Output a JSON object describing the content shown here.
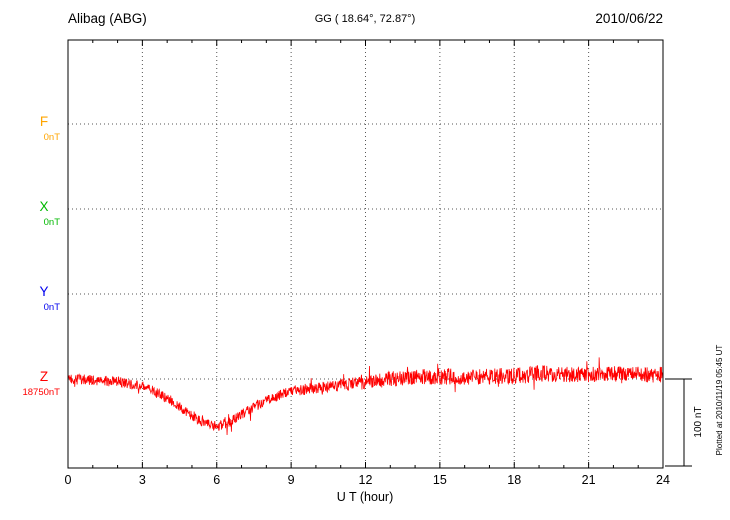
{
  "header": {
    "station": "Alibag (ABG)",
    "coords": "GG ( 18.64°,  72.87°)",
    "date": "2010/06/22"
  },
  "axes": {
    "x_label": "U T (hour)",
    "x_ticks": [
      0,
      3,
      6,
      9,
      12,
      15,
      18,
      21,
      24
    ],
    "x_min": 0,
    "x_max": 24
  },
  "channels": [
    {
      "name": "F",
      "baseline_label": "0nT",
      "color": "#FFA500"
    },
    {
      "name": "X",
      "baseline_label": "0nT",
      "color": "#00B800"
    },
    {
      "name": "Y",
      "baseline_label": "0nT",
      "color": "#0000EE"
    },
    {
      "name": "Z",
      "baseline_label": "18750nT",
      "color": "#FF0000"
    }
  ],
  "scale_bar": {
    "label": "100 nT",
    "nT": 100
  },
  "footer_note": "Plotted at 2010/11/19 05:45 UT",
  "chart_data": {
    "type": "line",
    "title": "Alibag (ABG) magnetogram",
    "xlabel": "U T (hour)",
    "x_range": [
      0,
      24
    ],
    "grid": "dotted",
    "series": [
      {
        "name": "Z",
        "color": "#FF0000",
        "baseline_nT": 18750,
        "scale_bar_nT": 100,
        "x_hours": [
          0,
          1,
          2,
          3,
          4,
          5,
          5.5,
          6,
          6.5,
          7,
          8,
          9,
          10,
          11,
          12,
          13,
          14,
          15,
          16,
          17,
          18,
          19,
          20,
          21,
          22,
          23,
          24
        ],
        "mean_dnT": [
          0,
          -1,
          -3,
          -8,
          -22,
          -42,
          -50,
          -55,
          -50,
          -40,
          -25,
          -14,
          -10,
          -7,
          -4,
          0,
          2,
          3,
          2,
          3,
          4,
          6,
          5,
          5,
          6,
          5,
          5
        ],
        "noise_amp_nT": [
          6,
          6,
          6,
          6,
          6,
          6,
          6,
          6,
          6,
          6,
          6,
          6,
          7,
          7,
          8,
          9,
          9,
          10,
          9,
          9,
          10,
          10,
          9,
          9,
          9,
          9,
          9
        ]
      }
    ]
  }
}
